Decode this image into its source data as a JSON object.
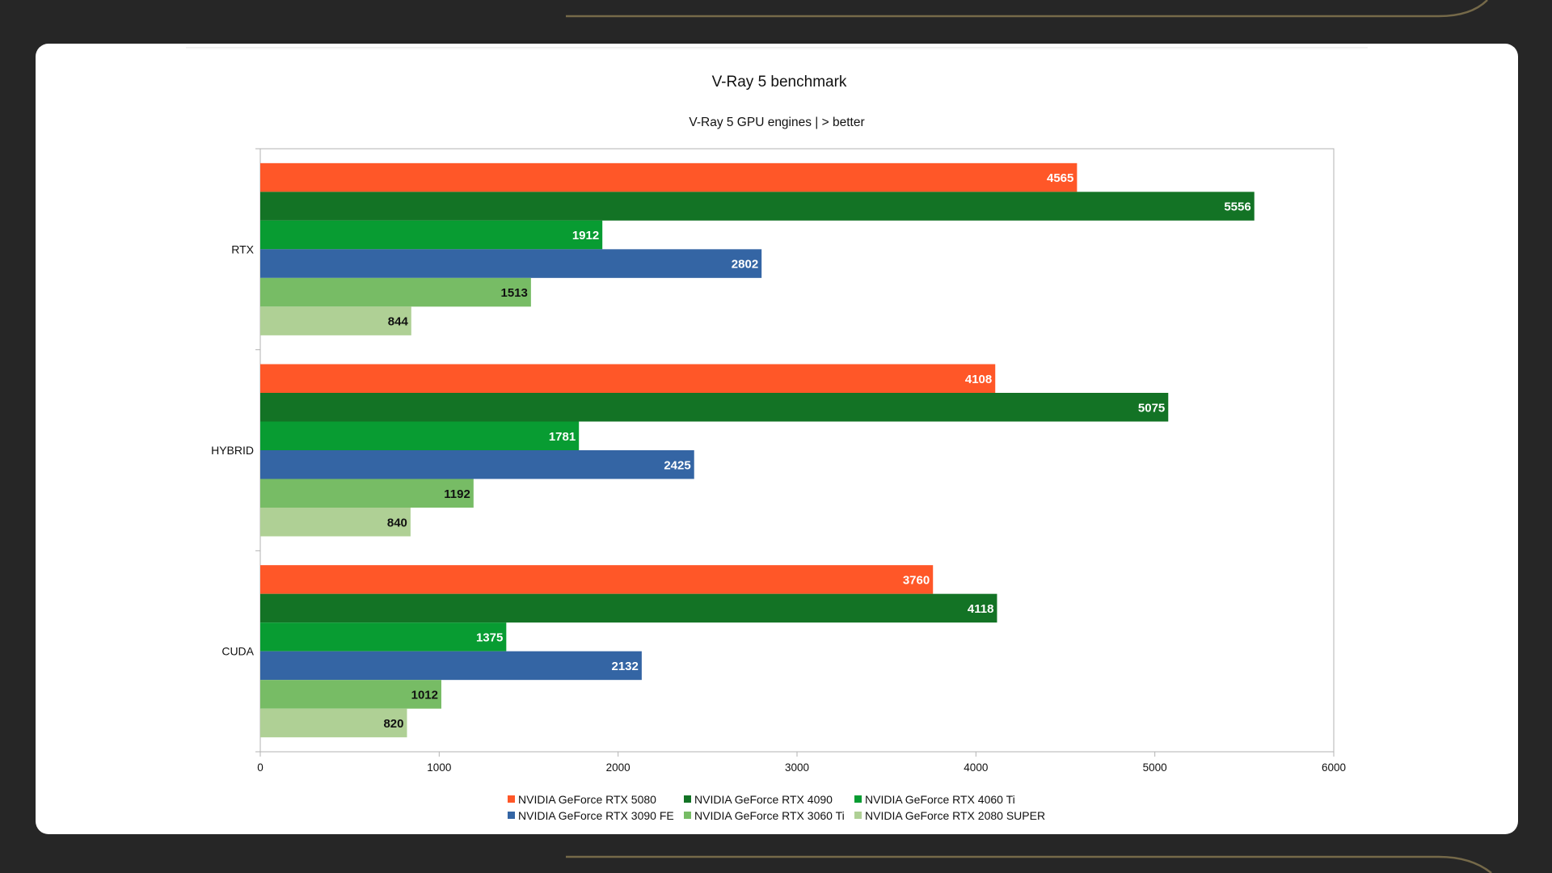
{
  "chart_data": {
    "type": "bar",
    "orientation": "horizontal",
    "title": "V-Ray 5 benchmark",
    "subtitle": "V-Ray 5 GPU engines | > better",
    "categories": [
      "RTX",
      "HYBRID",
      "CUDA"
    ],
    "xlim": [
      0,
      6000
    ],
    "xticks": [
      0,
      1000,
      2000,
      3000,
      4000,
      5000,
      6000
    ],
    "grid": false,
    "legend_position": "bottom",
    "series": [
      {
        "name": "NVIDIA GeForce RTX 5080",
        "color": "#ff5728",
        "label_color": "#ffffff",
        "values": [
          4565,
          4108,
          3760
        ]
      },
      {
        "name": "NVIDIA GeForce RTX 4090",
        "color": "#137325",
        "label_color": "#ffffff",
        "values": [
          5556,
          5075,
          4118
        ]
      },
      {
        "name": "NVIDIA GeForce RTX 4060 Ti",
        "color": "#089c32",
        "label_color": "#ffffff",
        "values": [
          1912,
          1781,
          1375
        ]
      },
      {
        "name": "NVIDIA GeForce RTX 3090 FE",
        "color": "#3465a4",
        "label_color": "#ffffff",
        "values": [
          2802,
          2425,
          2132
        ]
      },
      {
        "name": "NVIDIA GeForce RTX 3060 Ti",
        "color": "#77bc65",
        "label_color": "#111111",
        "values": [
          1513,
          1192,
          1012
        ]
      },
      {
        "name": "NVIDIA GeForce RTX 2080 SUPER",
        "color": "#afd095",
        "label_color": "#111111",
        "values": [
          844,
          840,
          820
        ]
      }
    ]
  }
}
